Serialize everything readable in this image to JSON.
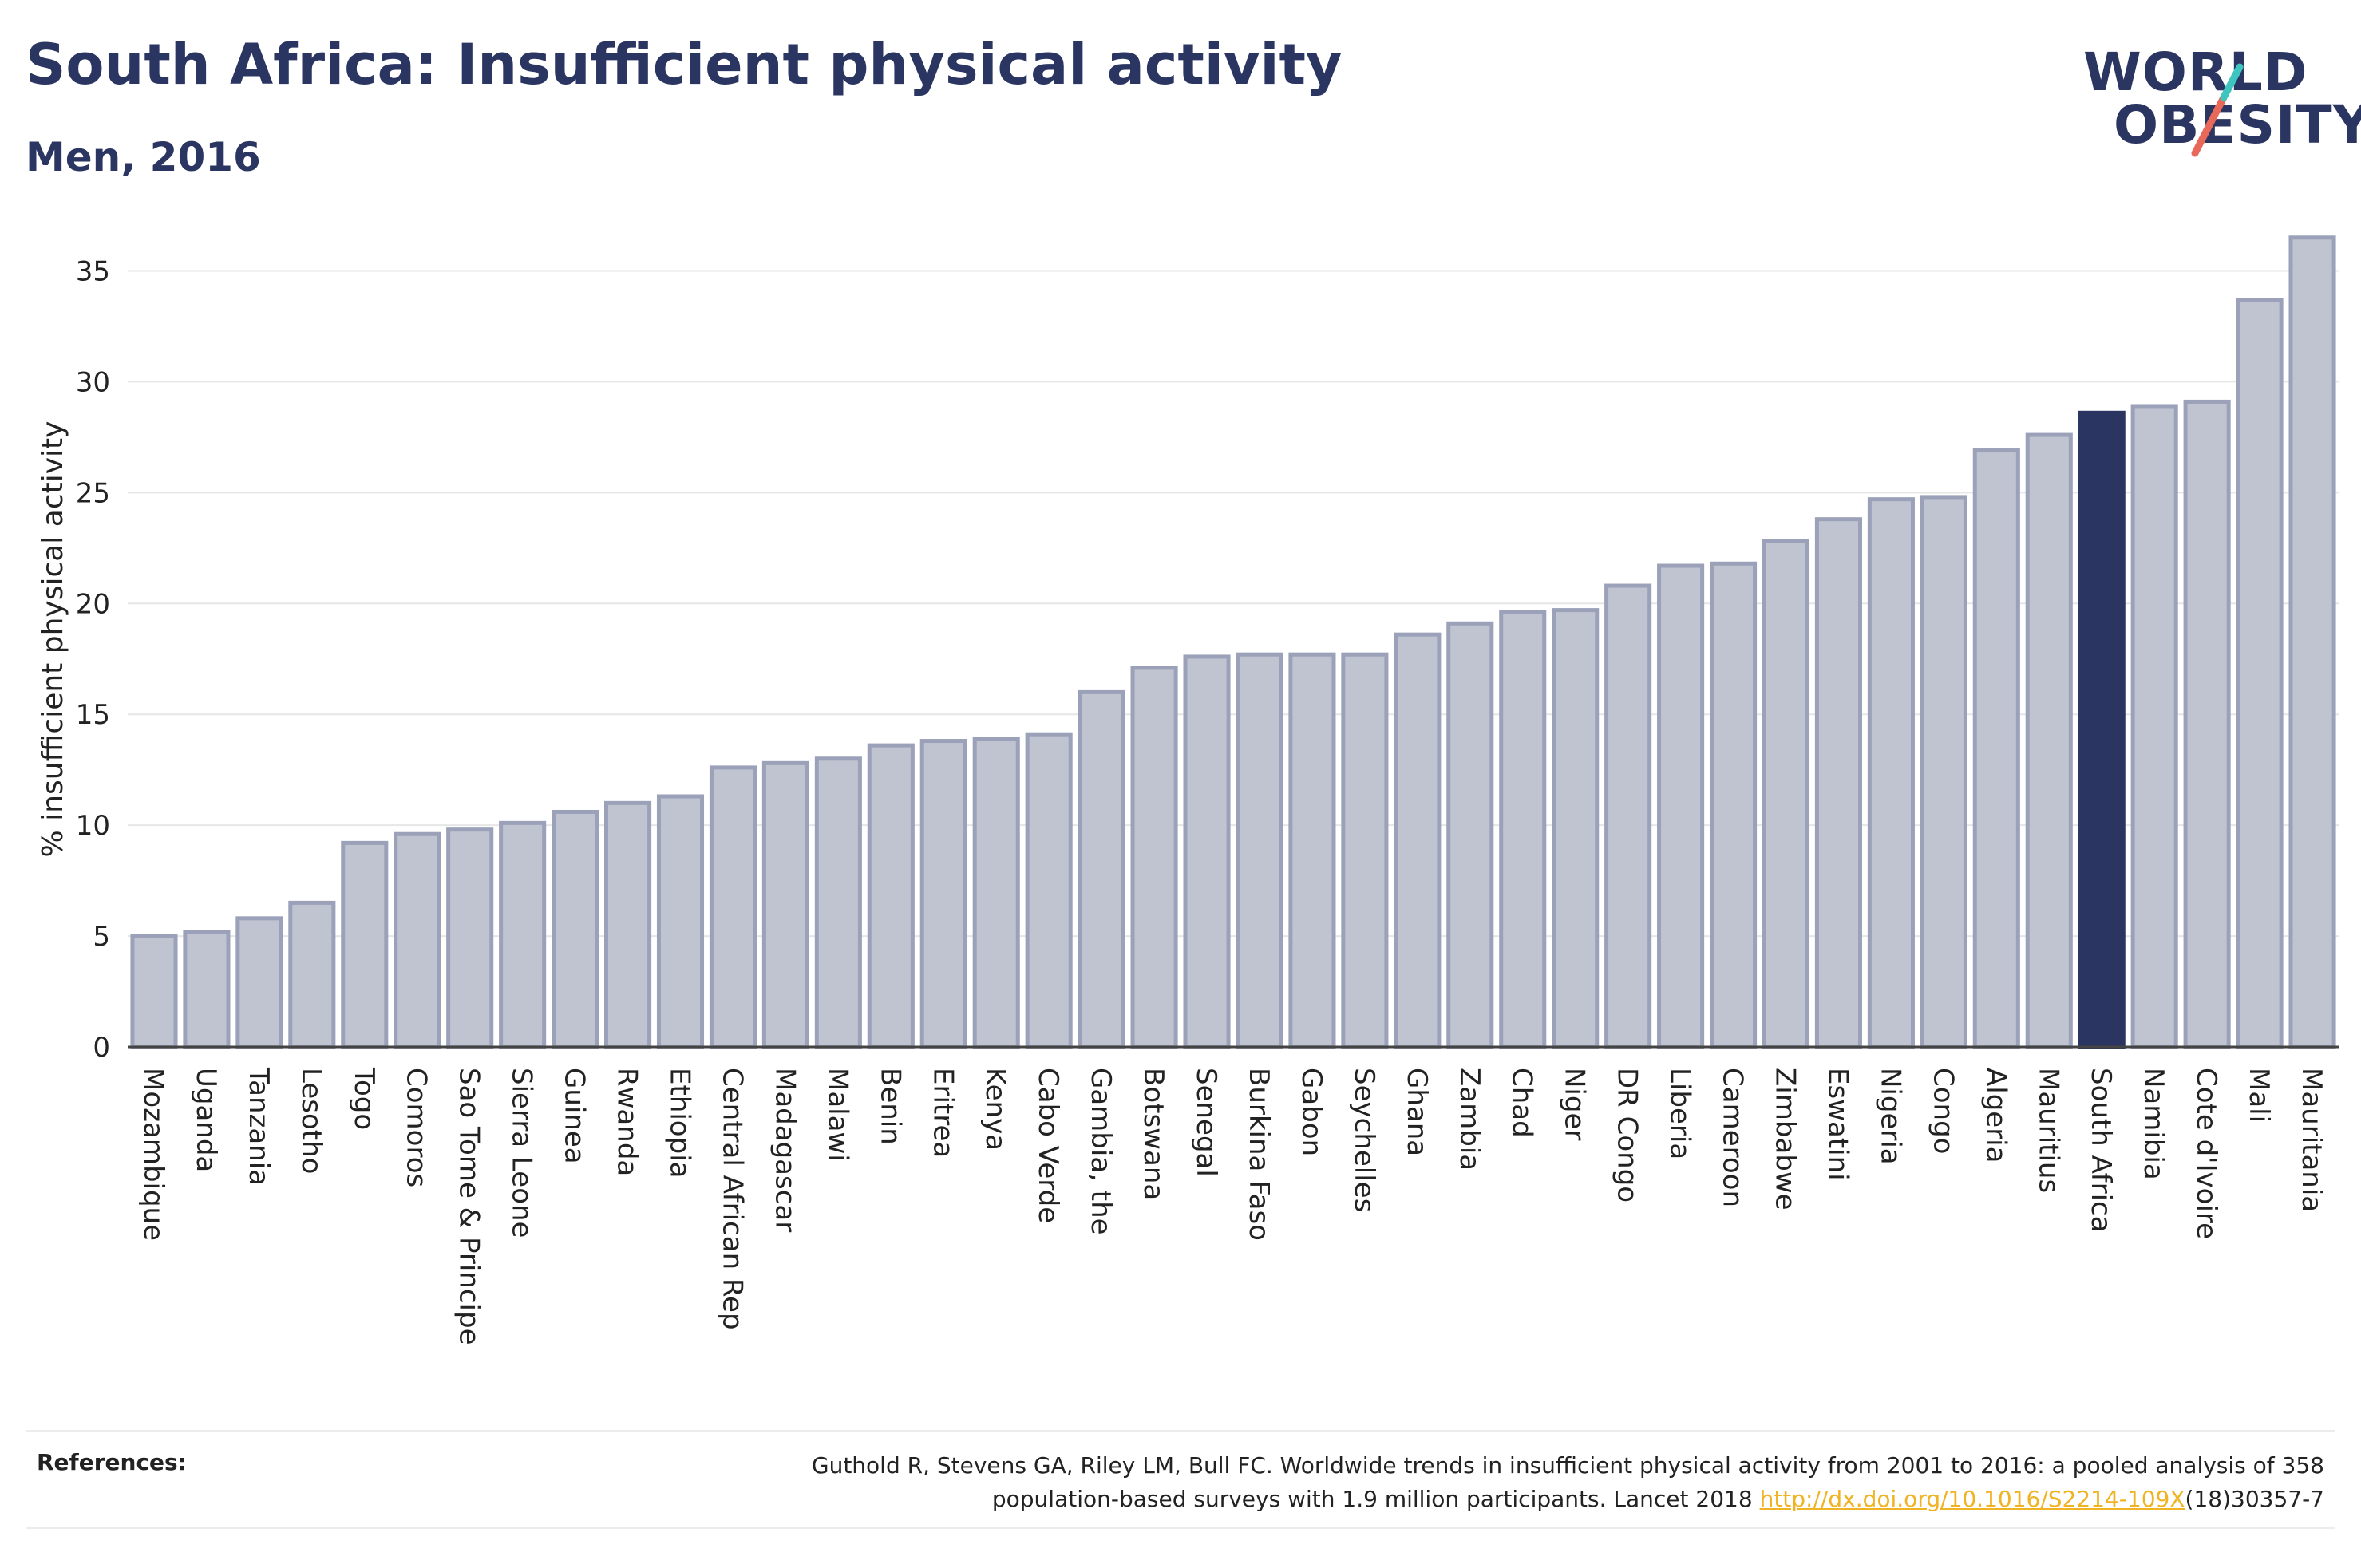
{
  "header": {
    "title": "South Africa: Insufficient physical activity",
    "subtitle": "Men, 2016"
  },
  "logo": {
    "line1": "WORLD",
    "line2": "OBESITY",
    "slash_color_top": "#3ec5c0",
    "slash_color_bottom": "#e8685a"
  },
  "colors": {
    "bar": "#c0c4d1",
    "bar_outline": "#9aa1b8",
    "highlight": "#2b3561",
    "text": "#2b3561",
    "grid": "#e6e6e6"
  },
  "chart_data": {
    "type": "bar",
    "title": "South Africa: Insufficient physical activity",
    "subtitle": "Men, 2016",
    "xlabel": "",
    "ylabel": "% insufficient physical activity",
    "ylim": [
      0,
      37.5
    ],
    "yticks": [
      0,
      5,
      10,
      15,
      20,
      25,
      30,
      35
    ],
    "grid": true,
    "highlight": "South Africa",
    "categories": [
      "Mozambique",
      "Uganda",
      "Tanzania",
      "Lesotho",
      "Togo",
      "Comoros",
      "Sao Tome & Principe",
      "Sierra Leone",
      "Guinea",
      "Rwanda",
      "Ethiopia",
      "Central African Rep",
      "Madagascar",
      "Malawi",
      "Benin",
      "Eritrea",
      "Kenya",
      "Cabo Verde",
      "Gambia, the",
      "Botswana",
      "Senegal",
      "Burkina Faso",
      "Gabon",
      "Seychelles",
      "Ghana",
      "Zambia",
      "Chad",
      "Niger",
      "DR Congo",
      "Liberia",
      "Cameroon",
      "Zimbabwe",
      "Eswatini",
      "Nigeria",
      "Congo",
      "Algeria",
      "Mauritius",
      "South Africa",
      "Namibia",
      "Cote d'Ivoire",
      "Mali",
      "Mauritania"
    ],
    "values": [
      5.0,
      5.2,
      5.8,
      6.5,
      9.2,
      9.6,
      9.8,
      10.1,
      10.6,
      11.0,
      11.3,
      12.6,
      12.8,
      13.0,
      13.6,
      13.8,
      13.9,
      14.1,
      16.0,
      17.1,
      17.6,
      17.7,
      17.7,
      17.7,
      18.6,
      19.1,
      19.6,
      19.7,
      20.8,
      21.7,
      21.8,
      22.8,
      23.8,
      24.7,
      24.8,
      26.9,
      27.6,
      28.6,
      28.9,
      29.1,
      33.7,
      36.5
    ]
  },
  "references": {
    "label": "References:",
    "text_line1": "Guthold R, Stevens GA, Riley LM, Bull FC. Worldwide trends in insufficient physical activity from 2001 to 2016: a pooled analysis of 358",
    "text_line2_pre": "population-based surveys with 1.9 million participants. Lancet 2018 ",
    "link": "http://dx.doi.org/10.1016/S2214-109X",
    "text_line2_post": "(18)30357-7"
  }
}
